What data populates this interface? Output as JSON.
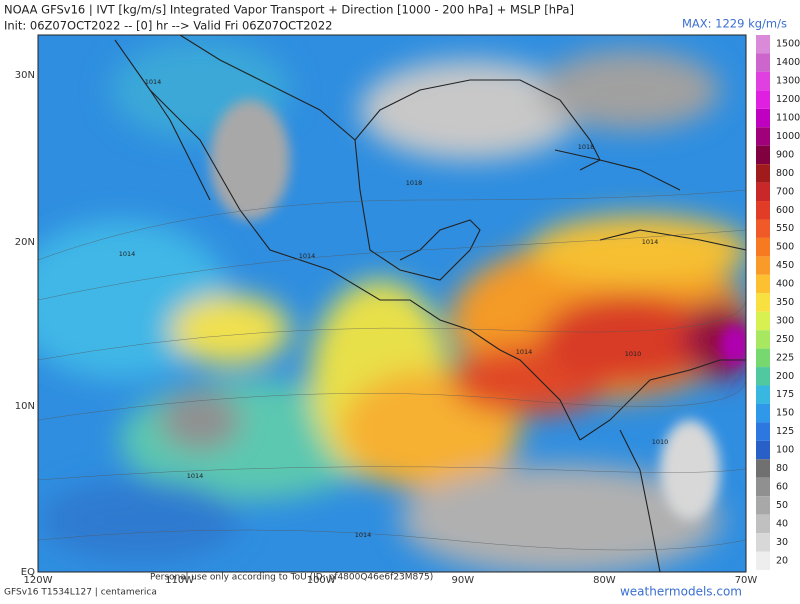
{
  "header": {
    "title": "NOAA GFSv16 | IVT [kg/m/s] Integrated Vapor Transport + Direction [1000 - 200 hPa] + MSLP [hPa]",
    "init": "Init: 06Z07OCT2022 -- [0] hr --> Valid Fri 06Z07OCT2022",
    "max": "MAX: 1229 kg/m/s"
  },
  "latitude_labels": [
    "30N",
    "20N",
    "10N",
    "EQ"
  ],
  "longitude_labels": [
    "120W",
    "110W",
    "100W",
    "90W",
    "80W",
    "70W"
  ],
  "isobar_labels": [
    "1014",
    "1014",
    "1014",
    "1014",
    "1014",
    "1014",
    "1018",
    "1018",
    "1010",
    "1010",
    "1014"
  ],
  "colorbar": [
    {
      "label": "1500",
      "color": "#d98ad9"
    },
    {
      "label": "1400",
      "color": "#cc66cc"
    },
    {
      "label": "1300",
      "color": "#e040e0"
    },
    {
      "label": "1200",
      "color": "#e020e0"
    },
    {
      "label": "1100",
      "color": "#c000c0"
    },
    {
      "label": "1000",
      "color": "#a0007a"
    },
    {
      "label": "900",
      "color": "#800040"
    },
    {
      "label": "800",
      "color": "#a01c1c"
    },
    {
      "label": "700",
      "color": "#c82828"
    },
    {
      "label": "600",
      "color": "#e03c28"
    },
    {
      "label": "550",
      "color": "#f05a28"
    },
    {
      "label": "500",
      "color": "#f87a20"
    },
    {
      "label": "450",
      "color": "#fa9a28"
    },
    {
      "label": "400",
      "color": "#fcc030"
    },
    {
      "label": "350",
      "color": "#f8e040"
    },
    {
      "label": "300",
      "color": "#d8f050"
    },
    {
      "label": "250",
      "color": "#a8e860"
    },
    {
      "label": "225",
      "color": "#78d870"
    },
    {
      "label": "200",
      "color": "#50c8a0"
    },
    {
      "label": "175",
      "color": "#38b8e0"
    },
    {
      "label": "150",
      "color": "#3098e8"
    },
    {
      "label": "125",
      "color": "#2c78e0"
    },
    {
      "label": "100",
      "color": "#2860c8"
    },
    {
      "label": "80",
      "color": "#707070"
    },
    {
      "label": "60",
      "color": "#909090"
    },
    {
      "label": "50",
      "color": "#a8a8a8"
    },
    {
      "label": "40",
      "color": "#c0c0c0"
    },
    {
      "label": "30",
      "color": "#d8d8d8"
    },
    {
      "label": "20",
      "color": "#eeeeee"
    }
  ],
  "footer": {
    "model": "GFSv16 T1534L127 | centamerica",
    "notice": "Personal use only according to ToU (ID: pf4800Q46e6f23M875)",
    "site": "weathermodels.com"
  }
}
